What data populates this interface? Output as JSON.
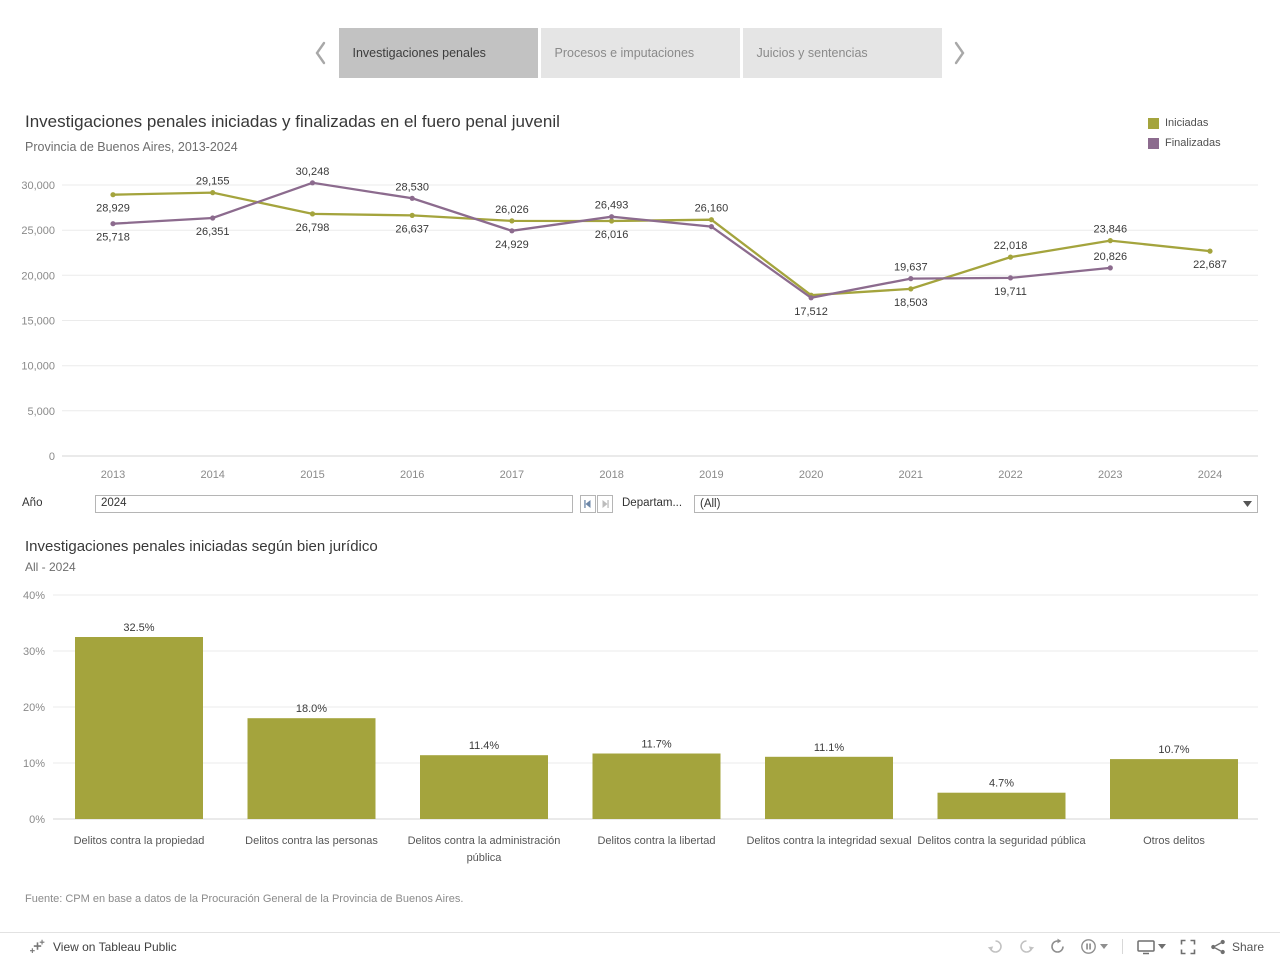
{
  "colors": {
    "iniciadas": "#a4a43d",
    "finalizadas": "#8c6b8e"
  },
  "tabs": [
    {
      "label": "Investigaciones penales",
      "active": true
    },
    {
      "label": "Procesos e imputaciones",
      "active": false
    },
    {
      "label": "Juicios y sentencias",
      "active": false
    }
  ],
  "legend": [
    {
      "label": "Iniciadas",
      "color_key": "iniciadas"
    },
    {
      "label": "Finalizadas",
      "color_key": "finalizadas"
    }
  ],
  "filters": {
    "year_label": "Año",
    "year_value": "2024",
    "department_label": "Departam...",
    "department_value": "(All)"
  },
  "source": "Fuente: CPM en base a datos de la Procuración General de la Provincia de Buenos Aires.",
  "toolbar": {
    "view_label": "View on Tableau Public",
    "share_label": "Share"
  },
  "chart_data": [
    {
      "type": "line",
      "title": "Investigaciones penales iniciadas y finalizadas en el fuero penal juvenil",
      "subtitle": "Provincia de Buenos Aires, 2013-2024",
      "x": [
        2013,
        2014,
        2015,
        2016,
        2017,
        2018,
        2019,
        2020,
        2021,
        2022,
        2023,
        2024
      ],
      "ylim": [
        0,
        30000
      ],
      "yticks": [
        "0",
        "5,000",
        "10,000",
        "15,000",
        "20,000",
        "25,000",
        "30,000"
      ],
      "grid": true,
      "legend_position": "top-right",
      "series": [
        {
          "name": "Iniciadas",
          "color": "#a4a43d",
          "values": [
            28929,
            29155,
            26798,
            26637,
            26026,
            26016,
            26160,
            17800,
            18503,
            22018,
            23846,
            22687
          ],
          "labels": [
            "28,929",
            "29,155",
            "26,798",
            "26,637",
            "26,026",
            "26,016",
            "26,160",
            null,
            "18,503",
            "22,018",
            "23,846",
            "22,687"
          ],
          "label_pos": [
            "below",
            "above",
            "below",
            "below",
            "above",
            "below",
            "above",
            null,
            "below",
            "above",
            "above",
            "below"
          ]
        },
        {
          "name": "Finalizadas",
          "color": "#8c6b8e",
          "values": [
            25718,
            26351,
            30248,
            28530,
            24929,
            26493,
            25400,
            17512,
            19637,
            19711,
            20826,
            null
          ],
          "labels": [
            "25,718",
            "26,351",
            "30,248",
            "28,530",
            "24,929",
            "26,493",
            null,
            "17,512",
            "19,637",
            "19,711",
            "20,826",
            null
          ],
          "label_pos": [
            "below",
            "below",
            "above",
            "above",
            "below",
            "above",
            null,
            "below",
            "above",
            "below",
            "above",
            null
          ]
        }
      ]
    },
    {
      "type": "bar",
      "title": "Investigaciones penales iniciadas según bien jurídico",
      "subtitle": "All - 2024",
      "categories": [
        "Delitos contra la propiedad",
        "Delitos contra las personas",
        "Delitos contra la administración pública",
        "Delitos contra la libertad",
        "Delitos contra la integridad sexual",
        "Delitos contra la seguridad pública",
        "Otros delitos"
      ],
      "values": [
        32.5,
        18.0,
        11.4,
        11.7,
        11.1,
        4.7,
        10.7
      ],
      "value_labels": [
        "32.5%",
        "18.0%",
        "11.4%",
        "11.7%",
        "11.1%",
        "4.7%",
        "10.7%"
      ],
      "ylim": [
        0,
        40
      ],
      "yticks": [
        "0%",
        "10%",
        "20%",
        "30%",
        "40%"
      ]
    }
  ]
}
